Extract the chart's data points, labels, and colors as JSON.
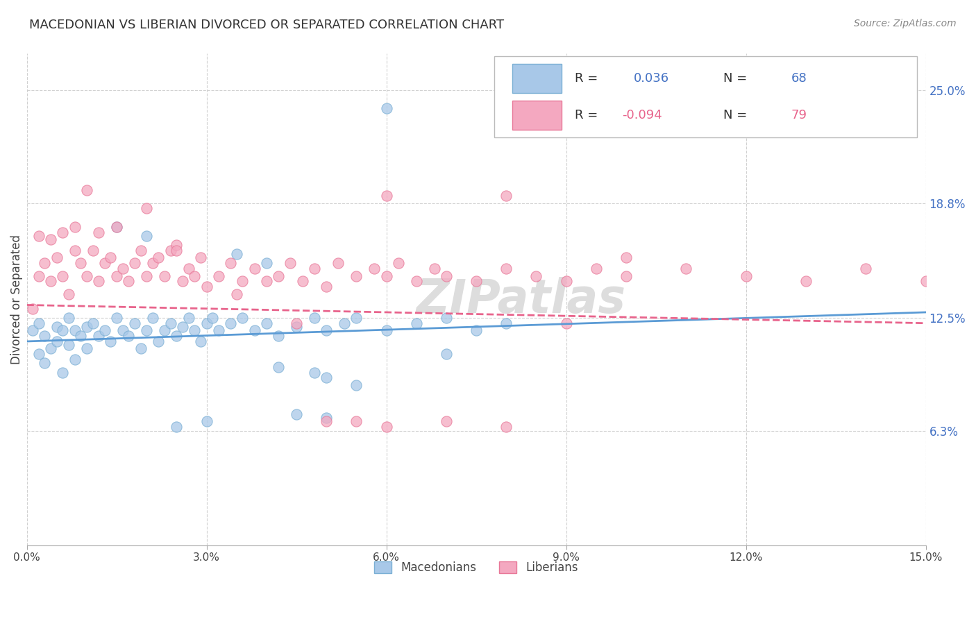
{
  "title": "MACEDONIAN VS LIBERIAN DIVORCED OR SEPARATED CORRELATION CHART",
  "source": "Source: ZipAtlas.com",
  "ylabel": "Divorced or Separated",
  "ytick_labels": [
    "6.3%",
    "12.5%",
    "18.8%",
    "25.0%"
  ],
  "ytick_values": [
    0.063,
    0.125,
    0.188,
    0.25
  ],
  "xmin": 0.0,
  "xmax": 0.15,
  "ymin": 0.0,
  "ymax": 0.27,
  "macedonian_color": "#a8c8e8",
  "liberian_color": "#f4a8c0",
  "macedonian_edge": "#7aafd4",
  "liberian_edge": "#e87898",
  "mac_line_color": "#5b9bd5",
  "lib_line_color": "#e8648c",
  "grid_color": "#cccccc",
  "label_color": "#4472c4",
  "title_color": "#333333",
  "source_color": "#888888",
  "watermark_color": "#dddddd",
  "mac_scatter_x": [
    0.001,
    0.002,
    0.002,
    0.003,
    0.003,
    0.004,
    0.005,
    0.005,
    0.006,
    0.006,
    0.007,
    0.007,
    0.008,
    0.008,
    0.009,
    0.01,
    0.01,
    0.011,
    0.012,
    0.013,
    0.014,
    0.015,
    0.016,
    0.017,
    0.018,
    0.019,
    0.02,
    0.021,
    0.022,
    0.023,
    0.024,
    0.025,
    0.026,
    0.027,
    0.028,
    0.029,
    0.03,
    0.031,
    0.032,
    0.034,
    0.036,
    0.038,
    0.04,
    0.042,
    0.045,
    0.048,
    0.05,
    0.053,
    0.055,
    0.06,
    0.065,
    0.07,
    0.075,
    0.08,
    0.042,
    0.048,
    0.05,
    0.055,
    0.04,
    0.035,
    0.03,
    0.025,
    0.07,
    0.06,
    0.02,
    0.015,
    0.05,
    0.045
  ],
  "mac_scatter_y": [
    0.118,
    0.105,
    0.122,
    0.1,
    0.115,
    0.108,
    0.12,
    0.112,
    0.095,
    0.118,
    0.11,
    0.125,
    0.102,
    0.118,
    0.115,
    0.12,
    0.108,
    0.122,
    0.115,
    0.118,
    0.112,
    0.125,
    0.118,
    0.115,
    0.122,
    0.108,
    0.118,
    0.125,
    0.112,
    0.118,
    0.122,
    0.115,
    0.12,
    0.125,
    0.118,
    0.112,
    0.122,
    0.125,
    0.118,
    0.122,
    0.125,
    0.118,
    0.122,
    0.115,
    0.12,
    0.125,
    0.118,
    0.122,
    0.125,
    0.118,
    0.122,
    0.125,
    0.118,
    0.122,
    0.098,
    0.095,
    0.092,
    0.088,
    0.155,
    0.16,
    0.068,
    0.065,
    0.105,
    0.24,
    0.17,
    0.175,
    0.07,
    0.072
  ],
  "lib_scatter_x": [
    0.001,
    0.002,
    0.003,
    0.004,
    0.005,
    0.006,
    0.007,
    0.008,
    0.009,
    0.01,
    0.011,
    0.012,
    0.013,
    0.014,
    0.015,
    0.016,
    0.017,
    0.018,
    0.019,
    0.02,
    0.021,
    0.022,
    0.023,
    0.024,
    0.025,
    0.026,
    0.027,
    0.028,
    0.029,
    0.03,
    0.032,
    0.034,
    0.036,
    0.038,
    0.04,
    0.042,
    0.044,
    0.046,
    0.048,
    0.05,
    0.052,
    0.055,
    0.058,
    0.06,
    0.062,
    0.065,
    0.068,
    0.07,
    0.075,
    0.08,
    0.085,
    0.09,
    0.095,
    0.1,
    0.11,
    0.12,
    0.13,
    0.14,
    0.15,
    0.002,
    0.004,
    0.006,
    0.008,
    0.01,
    0.012,
    0.015,
    0.02,
    0.025,
    0.035,
    0.045,
    0.05,
    0.055,
    0.06,
    0.07,
    0.08,
    0.09,
    0.1,
    0.06,
    0.08
  ],
  "lib_scatter_y": [
    0.13,
    0.148,
    0.155,
    0.145,
    0.158,
    0.148,
    0.138,
    0.162,
    0.155,
    0.148,
    0.162,
    0.145,
    0.155,
    0.158,
    0.148,
    0.152,
    0.145,
    0.155,
    0.162,
    0.148,
    0.155,
    0.158,
    0.148,
    0.162,
    0.165,
    0.145,
    0.152,
    0.148,
    0.158,
    0.142,
    0.148,
    0.155,
    0.145,
    0.152,
    0.145,
    0.148,
    0.155,
    0.145,
    0.152,
    0.142,
    0.155,
    0.148,
    0.152,
    0.148,
    0.155,
    0.145,
    0.152,
    0.148,
    0.145,
    0.152,
    0.148,
    0.145,
    0.152,
    0.148,
    0.152,
    0.148,
    0.145,
    0.152,
    0.145,
    0.17,
    0.168,
    0.172,
    0.175,
    0.195,
    0.172,
    0.175,
    0.185,
    0.162,
    0.138,
    0.122,
    0.068,
    0.068,
    0.192,
    0.068,
    0.192,
    0.122,
    0.158,
    0.065,
    0.065
  ],
  "mac_line_x": [
    0.0,
    0.15
  ],
  "mac_line_y": [
    0.112,
    0.128
  ],
  "lib_line_x": [
    0.0,
    0.15
  ],
  "lib_line_y": [
    0.132,
    0.122
  ]
}
